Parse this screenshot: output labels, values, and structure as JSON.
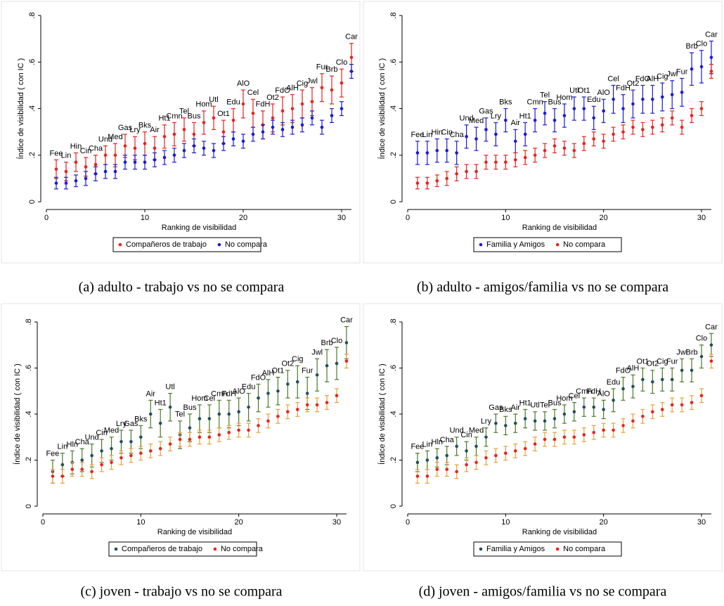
{
  "chart_data": [
    {
      "type": "scatter",
      "caption": "(a)  adulto - trabajo vs no se compara",
      "y_label": "Índice de visibilidad ( con IC )",
      "x_label": "Ranking de visibilidad",
      "xlim": [
        0,
        31
      ],
      "xticks": [
        0,
        10,
        20,
        30
      ],
      "ylim": [
        0,
        0.8
      ],
      "yticks": [
        0,
        {
          "value": 0.2,
          "label": ".2"
        },
        {
          "value": 0.4,
          "label": ".4"
        },
        {
          "value": 0.6,
          "label": ".6"
        },
        {
          "value": 0.8,
          "label": ".8"
        }
      ],
      "x": [
        1,
        2,
        3,
        4,
        5,
        6,
        7,
        8,
        9,
        10,
        11,
        12,
        13,
        14,
        15,
        16,
        17,
        18,
        19,
        20,
        21,
        22,
        23,
        24,
        25,
        26,
        27,
        28,
        29,
        30,
        31
      ],
      "categories": [
        "Fee",
        "Lin",
        "Hin",
        "Cin",
        "Cha",
        "Und",
        "Med",
        "Gas",
        "Lry",
        "Bks",
        "Air",
        "Ht1",
        "Cmn",
        "Tel",
        "Bus",
        "Hom",
        "Utl",
        "Ot1",
        "Edu",
        "AlO",
        "Cel",
        "FdH",
        "Ot2",
        "FdO",
        "AlH",
        "Cig",
        "Jwl",
        "Fur",
        "Brb",
        "Clo",
        "Car"
      ],
      "series": [
        {
          "name": "Compañeros de trabajo",
          "color": "#e8221f",
          "marker_color": "#e8221f",
          "values": [
            0.14,
            0.13,
            0.17,
            0.15,
            0.16,
            0.2,
            0.2,
            0.24,
            0.23,
            0.25,
            0.23,
            0.28,
            0.29,
            0.31,
            0.29,
            0.34,
            0.36,
            0.3,
            0.35,
            0.42,
            0.38,
            0.33,
            0.36,
            0.39,
            0.4,
            0.42,
            0.43,
            0.49,
            0.48,
            0.51,
            0.62
          ],
          "errors": [
            0.04,
            0.04,
            0.04,
            0.04,
            0.04,
            0.04,
            0.05,
            0.05,
            0.05,
            0.05,
            0.05,
            0.05,
            0.05,
            0.05,
            0.05,
            0.05,
            0.05,
            0.05,
            0.05,
            0.06,
            0.06,
            0.06,
            0.06,
            0.06,
            0.06,
            0.06,
            0.06,
            0.06,
            0.06,
            0.06,
            0.06
          ]
        },
        {
          "name": "No compara",
          "color": "#1a1ad6",
          "marker_color": "#1a1ad6",
          "values": [
            0.08,
            0.08,
            0.09,
            0.1,
            0.12,
            0.13,
            0.13,
            0.17,
            0.17,
            0.17,
            0.18,
            0.19,
            0.2,
            0.22,
            0.24,
            0.23,
            0.22,
            0.25,
            0.27,
            0.26,
            0.29,
            0.3,
            0.32,
            0.31,
            0.32,
            0.33,
            0.36,
            0.32,
            0.37,
            0.4,
            0.56
          ],
          "errors": [
            0.025,
            0.025,
            0.025,
            0.03,
            0.03,
            0.03,
            0.03,
            0.03,
            0.03,
            0.03,
            0.03,
            0.03,
            0.03,
            0.03,
            0.03,
            0.03,
            0.03,
            0.03,
            0.03,
            0.03,
            0.03,
            0.03,
            0.03,
            0.03,
            0.03,
            0.03,
            0.03,
            0.03,
            0.03,
            0.03,
            0.03
          ]
        }
      ]
    },
    {
      "type": "scatter",
      "caption": "(b)  adulto - amigos/familia vs no se compara",
      "y_label": "Índice de visibilidad ( con IC )",
      "x_label": "Ranking de visibilidad",
      "xlim": [
        0,
        31
      ],
      "xticks": [
        0,
        10,
        20,
        30
      ],
      "ylim": [
        0,
        0.8
      ],
      "yticks": [
        0,
        {
          "value": 0.2,
          "label": ".2"
        },
        {
          "value": 0.4,
          "label": ".4"
        },
        {
          "value": 0.6,
          "label": ".6"
        },
        {
          "value": 0.8,
          "label": ".8"
        }
      ],
      "x": [
        1,
        2,
        3,
        4,
        5,
        6,
        7,
        8,
        9,
        10,
        11,
        12,
        13,
        14,
        15,
        16,
        17,
        18,
        19,
        20,
        21,
        22,
        23,
        24,
        25,
        26,
        27,
        28,
        29,
        30,
        31
      ],
      "categories": [
        "Fee",
        "Lin",
        "Hin",
        "Cin",
        "Cha",
        "Und",
        "Med",
        "Gas",
        "Lry",
        "Bks",
        "Air",
        "Ht1",
        "Cmn",
        "Tel",
        "Bus",
        "Hom",
        "Utl",
        "Ot1",
        "Edu",
        "AlO",
        "Cel",
        "FdH",
        "Ot2",
        "FdO",
        "AlH",
        "Cig",
        "Jwl",
        "Fur",
        "Brb",
        "Clo",
        "Car"
      ],
      "series": [
        {
          "name": "Familia y Amigos",
          "color": "#1a1ad6",
          "marker_color": "#1a1ad6",
          "values": [
            0.21,
            0.21,
            0.22,
            0.22,
            0.21,
            0.28,
            0.27,
            0.31,
            0.29,
            0.35,
            0.26,
            0.29,
            0.35,
            0.38,
            0.35,
            0.37,
            0.4,
            0.4,
            0.36,
            0.39,
            0.44,
            0.4,
            0.42,
            0.44,
            0.44,
            0.45,
            0.46,
            0.47,
            0.57,
            0.58,
            0.62
          ],
          "errors": [
            0.05,
            0.05,
            0.05,
            0.05,
            0.05,
            0.05,
            0.05,
            0.05,
            0.05,
            0.05,
            0.05,
            0.05,
            0.05,
            0.05,
            0.05,
            0.05,
            0.05,
            0.05,
            0.05,
            0.05,
            0.06,
            0.06,
            0.06,
            0.06,
            0.06,
            0.06,
            0.06,
            0.06,
            0.07,
            0.07,
            0.07
          ]
        },
        {
          "name": "No compara",
          "color": "#e8221f",
          "marker_color": "#e8221f",
          "values": [
            0.08,
            0.08,
            0.09,
            0.1,
            0.12,
            0.13,
            0.13,
            0.17,
            0.17,
            0.17,
            0.18,
            0.19,
            0.2,
            0.22,
            0.24,
            0.23,
            0.22,
            0.25,
            0.27,
            0.26,
            0.29,
            0.3,
            0.32,
            0.31,
            0.32,
            0.33,
            0.36,
            0.32,
            0.37,
            0.4,
            0.56
          ],
          "errors": [
            0.025,
            0.025,
            0.025,
            0.03,
            0.03,
            0.03,
            0.03,
            0.03,
            0.03,
            0.03,
            0.03,
            0.03,
            0.03,
            0.03,
            0.03,
            0.03,
            0.03,
            0.03,
            0.03,
            0.03,
            0.03,
            0.03,
            0.03,
            0.03,
            0.03,
            0.03,
            0.03,
            0.03,
            0.03,
            0.03,
            0.03
          ]
        }
      ]
    },
    {
      "type": "scatter",
      "caption": "(c)  joven - trabajo vs no se compara",
      "y_label": "Índice de visibilidad ( con IC )",
      "x_label": "Ranking de visibilidad",
      "xlim": [
        0,
        31
      ],
      "xticks": [
        0,
        10,
        20,
        30
      ],
      "ylim": [
        0,
        0.8
      ],
      "yticks": [
        0,
        {
          "value": 0.2,
          "label": ".2"
        },
        {
          "value": 0.4,
          "label": ".4"
        },
        {
          "value": 0.6,
          "label": ".6"
        },
        {
          "value": 0.8,
          "label": ".8"
        }
      ],
      "x": [
        1,
        2,
        3,
        4,
        5,
        6,
        7,
        8,
        9,
        10,
        11,
        12,
        13,
        14,
        15,
        16,
        17,
        18,
        19,
        20,
        21,
        22,
        23,
        24,
        25,
        26,
        27,
        28,
        29,
        30,
        31
      ],
      "categories": [
        "Fee",
        "Lin",
        "Hln",
        "Cha",
        "Und",
        "Cin",
        "Med",
        "Lry",
        "Gas",
        "Bks",
        "Air",
        "Ht1",
        "Utl",
        "Tel",
        "Bus",
        "Hom",
        "Cel",
        "Cmn",
        "FdH",
        "AlO",
        "Edu",
        "FdO",
        "AlH",
        "Ot1",
        "Ot2",
        "Cig",
        "Fur",
        "Jwl",
        "Brb",
        "Clo",
        "Car"
      ],
      "series": [
        {
          "name": "Compañeros de trabajo",
          "color": "#4a7a2a",
          "marker_color": "#1f4f5f",
          "values": [
            0.15,
            0.18,
            0.19,
            0.2,
            0.22,
            0.24,
            0.25,
            0.28,
            0.28,
            0.3,
            0.4,
            0.36,
            0.43,
            0.31,
            0.34,
            0.38,
            0.38,
            0.4,
            0.4,
            0.41,
            0.43,
            0.47,
            0.49,
            0.5,
            0.53,
            0.54,
            0.49,
            0.57,
            0.61,
            0.62,
            0.71
          ],
          "errors": [
            0.05,
            0.05,
            0.05,
            0.05,
            0.05,
            0.05,
            0.05,
            0.05,
            0.05,
            0.05,
            0.06,
            0.06,
            0.06,
            0.06,
            0.06,
            0.06,
            0.06,
            0.06,
            0.06,
            0.06,
            0.06,
            0.06,
            0.06,
            0.06,
            0.06,
            0.07,
            0.07,
            0.07,
            0.07,
            0.07,
            0.07
          ]
        },
        {
          "name": "No compara",
          "color": "#e8a03a",
          "marker_color": "#e8221f",
          "values": [
            0.13,
            0.13,
            0.16,
            0.16,
            0.15,
            0.18,
            0.19,
            0.21,
            0.22,
            0.23,
            0.24,
            0.25,
            0.27,
            0.29,
            0.29,
            0.3,
            0.3,
            0.31,
            0.32,
            0.33,
            0.33,
            0.35,
            0.37,
            0.39,
            0.41,
            0.42,
            0.44,
            0.44,
            0.45,
            0.48,
            0.63
          ],
          "errors": [
            0.03,
            0.03,
            0.03,
            0.03,
            0.03,
            0.03,
            0.03,
            0.03,
            0.03,
            0.03,
            0.03,
            0.03,
            0.03,
            0.03,
            0.03,
            0.03,
            0.03,
            0.03,
            0.03,
            0.03,
            0.03,
            0.03,
            0.03,
            0.03,
            0.03,
            0.03,
            0.03,
            0.03,
            0.03,
            0.03,
            0.03
          ]
        }
      ]
    },
    {
      "type": "scatter",
      "caption": "(d)  joven - amigos/familia vs no se compara",
      "y_label": "Índice de visibilidad ( con IC )",
      "x_label": "Ranking de visibilidad",
      "xlim": [
        0,
        31
      ],
      "xticks": [
        0,
        10,
        20,
        30
      ],
      "ylim": [
        0,
        0.8
      ],
      "yticks": [
        0,
        {
          "value": 0.2,
          "label": ".2"
        },
        {
          "value": 0.4,
          "label": ".4"
        },
        {
          "value": 0.6,
          "label": ".6"
        },
        {
          "value": 0.8,
          "label": ".8"
        }
      ],
      "x": [
        1,
        2,
        3,
        4,
        5,
        6,
        7,
        8,
        9,
        10,
        11,
        12,
        13,
        14,
        15,
        16,
        17,
        18,
        19,
        20,
        21,
        22,
        23,
        24,
        25,
        26,
        27,
        28,
        29,
        30,
        31
      ],
      "categories": [
        "Fee",
        "Lin",
        "Hln",
        "Cha",
        "Und",
        "Cin",
        "Med",
        "Lry",
        "Gas",
        "Bks",
        "Air",
        "Ht1",
        "Utl",
        "Tel",
        "Bus",
        "Hom",
        "Cel",
        "Cmn",
        "FdH",
        "AlO",
        "Edu",
        "FdO",
        "AlH",
        "Ot1",
        "Ot2",
        "Cig",
        "Fur",
        "Jwl",
        "Brb",
        "Clo",
        "Car"
      ],
      "series": [
        {
          "name": "Familia y Amigos",
          "color": "#4a7a2a",
          "marker_color": "#1f4f5f",
          "values": [
            0.19,
            0.2,
            0.21,
            0.22,
            0.26,
            0.24,
            0.26,
            0.3,
            0.36,
            0.35,
            0.36,
            0.38,
            0.37,
            0.37,
            0.38,
            0.4,
            0.41,
            0.43,
            0.43,
            0.42,
            0.46,
            0.51,
            0.52,
            0.55,
            0.54,
            0.55,
            0.55,
            0.59,
            0.59,
            0.65,
            0.7
          ],
          "errors": [
            0.04,
            0.04,
            0.04,
            0.04,
            0.04,
            0.04,
            0.04,
            0.04,
            0.04,
            0.04,
            0.04,
            0.04,
            0.04,
            0.04,
            0.04,
            0.04,
            0.04,
            0.04,
            0.04,
            0.04,
            0.05,
            0.05,
            0.05,
            0.05,
            0.05,
            0.05,
            0.05,
            0.05,
            0.05,
            0.05,
            0.05
          ]
        },
        {
          "name": "No compara",
          "color": "#e8a03a",
          "marker_color": "#e8221f",
          "values": [
            0.13,
            0.13,
            0.16,
            0.16,
            0.15,
            0.18,
            0.19,
            0.21,
            0.22,
            0.23,
            0.24,
            0.25,
            0.27,
            0.29,
            0.29,
            0.3,
            0.3,
            0.31,
            0.32,
            0.33,
            0.33,
            0.35,
            0.37,
            0.39,
            0.41,
            0.42,
            0.44,
            0.44,
            0.45,
            0.48,
            0.63
          ],
          "errors": [
            0.03,
            0.03,
            0.03,
            0.03,
            0.03,
            0.03,
            0.03,
            0.03,
            0.03,
            0.03,
            0.03,
            0.03,
            0.03,
            0.03,
            0.03,
            0.03,
            0.03,
            0.03,
            0.03,
            0.03,
            0.03,
            0.03,
            0.03,
            0.03,
            0.03,
            0.03,
            0.03,
            0.03,
            0.03,
            0.03,
            0.03
          ]
        }
      ]
    }
  ]
}
